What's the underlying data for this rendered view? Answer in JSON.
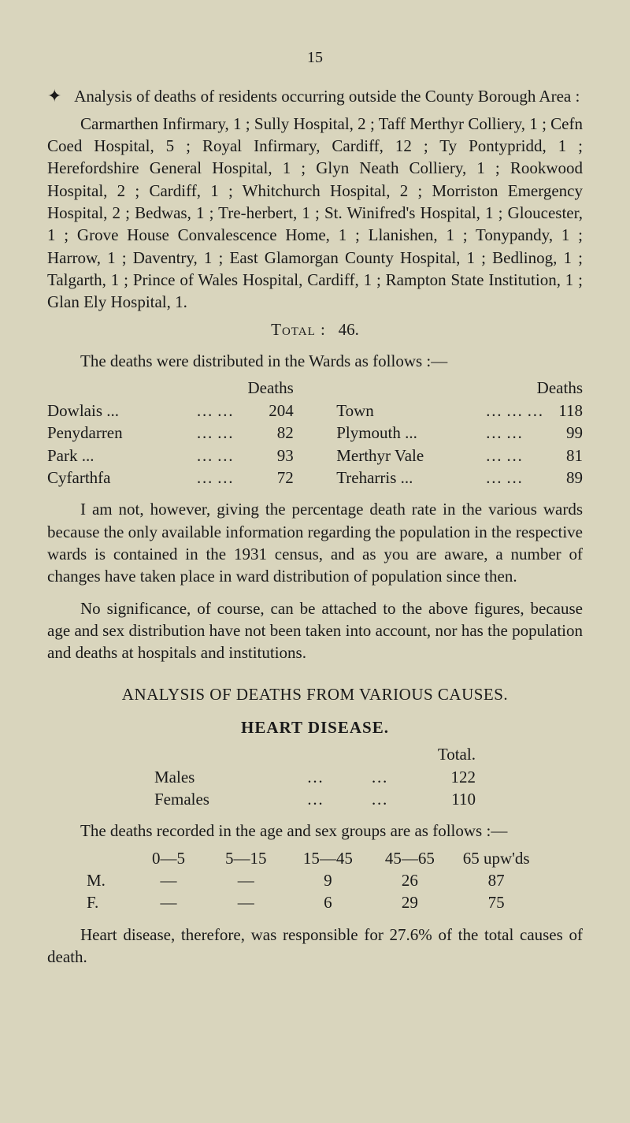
{
  "page_number": "15",
  "intro_para_1": "Analysis of deaths of residents occurring outside the County Borough Area :",
  "intro_para_2": "Carmarthen Infirmary, 1 ; Sully Hospital, 2 ; Taff Merthyr Colliery, 1 ; Cefn Coed Hospital, 5 ; Royal Infirmary, Cardiff, 12 ; Ty Pontypridd, 1 ; Herefordshire General Hospital, 1 ; Glyn Neath Colliery, 1 ; Rookwood Hospital, 2 ; Cardiff, 1 ; Whitchurch Hospital, 2 ; Morriston Emergency Hospital, 2 ; Bedwas, 1 ; Tre-herbert, 1 ; St. Winifred's Hospital, 1 ; Gloucester, 1 ; Grove House Convalescence Home, 1 ; Llanishen, 1 ; Tonypandy, 1 ; Harrow, 1 ; Daventry, 1 ; East Glamorgan County Hospital, 1 ; Bedlinog, 1 ; Talgarth, 1 ; Prince of Wales Hospital, Cardiff, 1 ; Rampton State Institution, 1 ; Glan Ely Hospital, 1.",
  "total_label": "Total :",
  "total_value": "46.",
  "dist_intro": "The deaths were distributed in the Wards as follows :—",
  "col_header": "Deaths",
  "wards_left": [
    {
      "label": "Dowlais ...",
      "dots": "…   …",
      "val": "204"
    },
    {
      "label": "Penydarren",
      "dots": "…   …",
      "val": "82"
    },
    {
      "label": "Park      ...",
      "dots": "…   …",
      "val": "93"
    },
    {
      "label": "Cyfarthfa",
      "dots": "…   …",
      "val": "72"
    }
  ],
  "wards_right": [
    {
      "label": "Town",
      "dots": "…   …   …",
      "val": "118"
    },
    {
      "label": "Plymouth ...",
      "dots": "…   …",
      "val": "99"
    },
    {
      "label": "Merthyr Vale",
      "dots": "…   …",
      "val": "81"
    },
    {
      "label": "Treharris ...",
      "dots": "…   …",
      "val": "89"
    }
  ],
  "para_rate": "I am not, however, giving the percentage death rate in the various wards because the only available information regarding the population in the respective wards is contained in the 1931 census, and as you are aware, a number of changes have taken place in ward distribution of population since then.",
  "para_sig": "No significance, of course, can be attached to the above figures, because age and sex distribution have not been taken into account, nor has the population and deaths at hospitals and institutions.",
  "analysis_title": "ANALYSIS OF DEATHS FROM VARIOUS CAUSES.",
  "heart_title": "HEART DISEASE.",
  "heart_total_label": "Total.",
  "heart_rows": [
    {
      "label": "Males",
      "d1": "…",
      "d2": "…",
      "val": "122"
    },
    {
      "label": "Females",
      "d1": "…",
      "d2": "…",
      "val": "110"
    }
  ],
  "age_intro": "The deaths recorded in the age and sex groups are as follows :—",
  "age_headers": [
    "",
    "0—5",
    "5—15",
    "15—45",
    "45—65",
    "65 upw'ds"
  ],
  "age_rows": [
    {
      "l": "M.",
      "a": "—",
      "b": "—",
      "c": "9",
      "d": "26",
      "e": "87"
    },
    {
      "l": "F.",
      "a": "—",
      "b": "—",
      "c": "6",
      "d": "29",
      "e": "75"
    }
  ],
  "closing": "Heart disease, therefore, was responsible for 27.6% of the total causes of death."
}
